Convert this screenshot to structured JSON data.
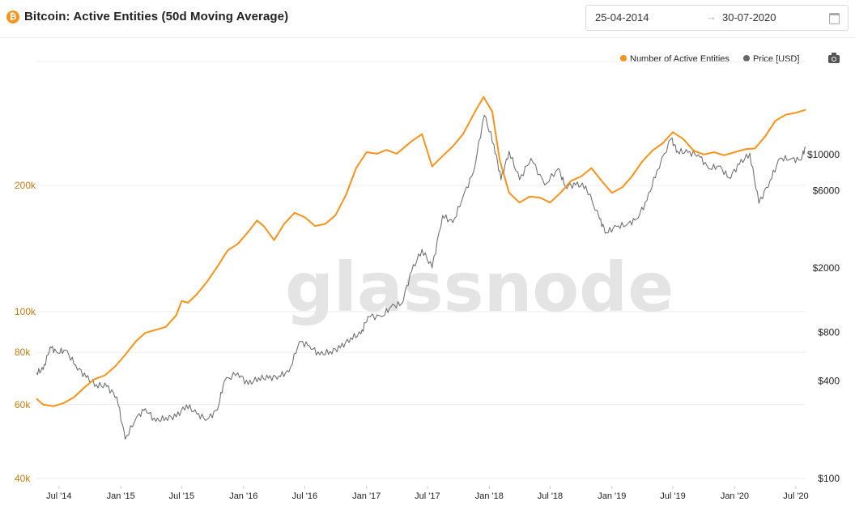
{
  "header": {
    "title": "Bitcoin: Active Entities (50d Moving Average)",
    "icon": "bitcoin-icon",
    "date_from": "25-04-2014",
    "date_arrow": "→",
    "date_to": "30-07-2020"
  },
  "colors": {
    "entities": "#f7931a",
    "price": "#666666",
    "left_axis": "#c27a12"
  },
  "chart_data": {
    "type": "line",
    "watermark": "glassnode",
    "legend": [
      "Number of Active Entities",
      "Price [USD]"
    ],
    "legend_placement": "top-right",
    "grid": "horizontal",
    "x_ticks": [
      "Jul '14",
      "Jan '15",
      "Jul '15",
      "Jan '16",
      "Jul '16",
      "Jan '17",
      "Jul '17",
      "Jan '18",
      "Jul '18",
      "Jan '19",
      "Jul '19",
      "Jan '20",
      "Jul '20"
    ],
    "left_axis": {
      "scale": "log",
      "ticks": [
        "200k",
        "100k",
        "80k",
        "60k",
        "40k"
      ],
      "tick_values": [
        200000,
        100000,
        80000,
        60000,
        40000
      ],
      "range": [
        40000,
        330000
      ]
    },
    "right_axis": {
      "scale": "log",
      "ticks": [
        "$10000",
        "$6000",
        "$2000",
        "$800",
        "$400",
        "$100"
      ],
      "tick_values": [
        10000,
        6000,
        2000,
        800,
        400,
        100
      ],
      "range": [
        100,
        20000
      ]
    },
    "series": [
      {
        "name": "Number of Active Entities",
        "axis": "left",
        "points": [
          [
            "2014-04-25",
            62000
          ],
          [
            "2014-05-15",
            60000
          ],
          [
            "2014-06-15",
            59500
          ],
          [
            "2014-07-15",
            60500
          ],
          [
            "2014-08-15",
            62500
          ],
          [
            "2014-09-15",
            66000
          ],
          [
            "2014-10-15",
            69000
          ],
          [
            "2014-11-15",
            70500
          ],
          [
            "2014-12-15",
            74000
          ],
          [
            "2015-01-15",
            79000
          ],
          [
            "2015-02-15",
            85000
          ],
          [
            "2015-03-15",
            89000
          ],
          [
            "2015-04-15",
            90500
          ],
          [
            "2015-05-15",
            92000
          ],
          [
            "2015-06-15",
            98000
          ],
          [
            "2015-07-01",
            106000
          ],
          [
            "2015-07-20",
            105000
          ],
          [
            "2015-08-15",
            110000
          ],
          [
            "2015-09-15",
            118000
          ],
          [
            "2015-10-15",
            128000
          ],
          [
            "2015-11-15",
            140000
          ],
          [
            "2015-12-15",
            145000
          ],
          [
            "2016-01-15",
            155000
          ],
          [
            "2016-02-10",
            165000
          ],
          [
            "2016-03-01",
            160000
          ],
          [
            "2016-04-01",
            148000
          ],
          [
            "2016-05-01",
            162000
          ],
          [
            "2016-06-01",
            172000
          ],
          [
            "2016-07-01",
            168000
          ],
          [
            "2016-08-01",
            160000
          ],
          [
            "2016-09-01",
            162000
          ],
          [
            "2016-10-01",
            170000
          ],
          [
            "2016-11-01",
            190000
          ],
          [
            "2016-12-01",
            220000
          ],
          [
            "2017-01-01",
            240000
          ],
          [
            "2017-02-01",
            238000
          ],
          [
            "2017-03-01",
            243000
          ],
          [
            "2017-04-01",
            238000
          ],
          [
            "2017-05-15",
            255000
          ],
          [
            "2017-06-15",
            265000
          ],
          [
            "2017-07-15",
            222000
          ],
          [
            "2017-08-15",
            235000
          ],
          [
            "2017-09-15",
            248000
          ],
          [
            "2017-10-15",
            265000
          ],
          [
            "2017-11-20",
            300000
          ],
          [
            "2017-12-15",
            325000
          ],
          [
            "2018-01-10",
            300000
          ],
          [
            "2018-02-01",
            230000
          ],
          [
            "2018-03-01",
            192000
          ],
          [
            "2018-04-01",
            182000
          ],
          [
            "2018-05-01",
            188000
          ],
          [
            "2018-06-01",
            187000
          ],
          [
            "2018-07-01",
            182000
          ],
          [
            "2018-08-01",
            192000
          ],
          [
            "2018-09-01",
            205000
          ],
          [
            "2018-10-01",
            210000
          ],
          [
            "2018-11-01",
            220000
          ],
          [
            "2018-12-01",
            205000
          ],
          [
            "2019-01-01",
            192000
          ],
          [
            "2019-02-01",
            198000
          ],
          [
            "2019-03-01",
            210000
          ],
          [
            "2019-04-01",
            228000
          ],
          [
            "2019-05-01",
            242000
          ],
          [
            "2019-06-01",
            252000
          ],
          [
            "2019-07-01",
            268000
          ],
          [
            "2019-08-01",
            258000
          ],
          [
            "2019-09-01",
            242000
          ],
          [
            "2019-10-01",
            237000
          ],
          [
            "2019-11-01",
            240000
          ],
          [
            "2019-12-01",
            236000
          ],
          [
            "2020-01-01",
            240000
          ],
          [
            "2020-02-01",
            244000
          ],
          [
            "2020-03-01",
            245000
          ],
          [
            "2020-04-01",
            262000
          ],
          [
            "2020-05-01",
            285000
          ],
          [
            "2020-06-01",
            295000
          ],
          [
            "2020-07-01",
            298000
          ],
          [
            "2020-07-30",
            303000
          ]
        ]
      },
      {
        "name": "Price [USD]",
        "axis": "right",
        "points": [
          [
            "2014-04-25",
            450
          ],
          [
            "2014-05-15",
            470
          ],
          [
            "2014-06-05",
            650
          ],
          [
            "2014-06-25",
            600
          ],
          [
            "2014-07-20",
            620
          ],
          [
            "2014-08-20",
            500
          ],
          [
            "2014-09-20",
            420
          ],
          [
            "2014-10-20",
            380
          ],
          [
            "2014-11-20",
            370
          ],
          [
            "2014-12-20",
            320
          ],
          [
            "2015-01-14",
            175
          ],
          [
            "2015-02-15",
            235
          ],
          [
            "2015-03-15",
            270
          ],
          [
            "2015-04-15",
            225
          ],
          [
            "2015-05-15",
            238
          ],
          [
            "2015-06-15",
            240
          ],
          [
            "2015-07-15",
            285
          ],
          [
            "2015-08-15",
            250
          ],
          [
            "2015-09-15",
            232
          ],
          [
            "2015-10-15",
            265
          ],
          [
            "2015-11-05",
            400
          ],
          [
            "2015-12-15",
            450
          ],
          [
            "2016-01-15",
            380
          ],
          [
            "2016-02-15",
            420
          ],
          [
            "2016-03-15",
            415
          ],
          [
            "2016-04-15",
            430
          ],
          [
            "2016-05-15",
            455
          ],
          [
            "2016-06-15",
            700
          ],
          [
            "2016-07-15",
            660
          ],
          [
            "2016-08-15",
            580
          ],
          [
            "2016-09-15",
            610
          ],
          [
            "2016-10-15",
            640
          ],
          [
            "2016-11-15",
            740
          ],
          [
            "2016-12-15",
            780
          ],
          [
            "2017-01-05",
            1000
          ],
          [
            "2017-02-15",
            1000
          ],
          [
            "2017-03-15",
            1150
          ],
          [
            "2017-04-15",
            1200
          ],
          [
            "2017-05-15",
            1900
          ],
          [
            "2017-06-15",
            2600
          ],
          [
            "2017-07-15",
            2000
          ],
          [
            "2017-08-15",
            4200
          ],
          [
            "2017-09-15",
            3800
          ],
          [
            "2017-10-15",
            5500
          ],
          [
            "2017-11-15",
            7800
          ],
          [
            "2017-12-17",
            17500
          ],
          [
            "2018-01-15",
            11500
          ],
          [
            "2018-02-05",
            7000
          ],
          [
            "2018-03-01",
            10500
          ],
          [
            "2018-04-01",
            7000
          ],
          [
            "2018-05-05",
            9500
          ],
          [
            "2018-06-15",
            6500
          ],
          [
            "2018-07-25",
            8200
          ],
          [
            "2018-08-15",
            6400
          ],
          [
            "2018-09-15",
            6500
          ],
          [
            "2018-10-15",
            6400
          ],
          [
            "2018-11-25",
            4000
          ],
          [
            "2018-12-15",
            3300
          ],
          [
            "2019-01-15",
            3600
          ],
          [
            "2019-02-15",
            3700
          ],
          [
            "2019-03-15",
            4000
          ],
          [
            "2019-04-15",
            5200
          ],
          [
            "2019-05-15",
            8000
          ],
          [
            "2019-06-26",
            12500
          ],
          [
            "2019-07-15",
            10500
          ],
          [
            "2019-08-15",
            10300
          ],
          [
            "2019-09-15",
            10000
          ],
          [
            "2019-10-15",
            8200
          ],
          [
            "2019-11-15",
            8500
          ],
          [
            "2019-12-15",
            7200
          ],
          [
            "2020-01-15",
            8700
          ],
          [
            "2020-02-15",
            10200
          ],
          [
            "2020-03-13",
            5000
          ],
          [
            "2020-04-15",
            6900
          ],
          [
            "2020-05-15",
            9500
          ],
          [
            "2020-06-15",
            9400
          ],
          [
            "2020-07-15",
            9250
          ],
          [
            "2020-07-30",
            11200
          ]
        ]
      }
    ]
  }
}
